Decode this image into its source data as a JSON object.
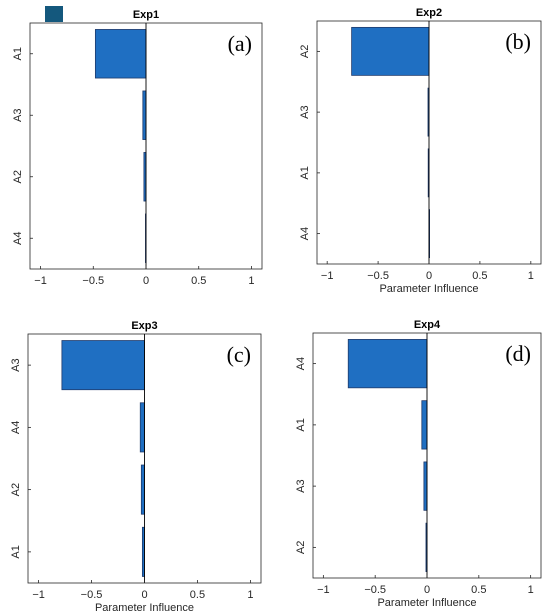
{
  "colors": {
    "bar": "#1f6fc2",
    "bar_edge": "#1f3a6b",
    "legend_patch": "#14587d"
  },
  "legend_patch_icon": "legend-color-patch",
  "chart_data": [
    {
      "type": "bar",
      "orientation": "horizontal",
      "panel_label": "(a)",
      "title": "Exp1",
      "xlabel": "",
      "ylabel": "",
      "categories": [
        "A1",
        "A3",
        "A2",
        "A4"
      ],
      "values": [
        -0.48,
        -0.03,
        -0.02,
        -0.005
      ],
      "xlim": [
        -1.1,
        1.1
      ],
      "xticks": [
        -1,
        -0.5,
        0,
        0.5,
        1
      ],
      "xtick_labels": [
        "−1",
        "−0.5",
        "0",
        "0.5",
        "1"
      ],
      "grid": false
    },
    {
      "type": "bar",
      "orientation": "horizontal",
      "panel_label": "(b)",
      "title": "Exp2",
      "xlabel": "Parameter Influence",
      "ylabel": "",
      "categories": [
        "A2",
        "A3",
        "A1",
        "A4"
      ],
      "values": [
        -0.76,
        -0.01,
        -0.008,
        0
      ],
      "xlim": [
        -1.1,
        1.1
      ],
      "xticks": [
        -1,
        -0.5,
        0,
        0.5,
        1
      ],
      "xtick_labels": [
        "−1",
        "−0.5",
        "0",
        "0.5",
        "1"
      ],
      "grid": false
    },
    {
      "type": "bar",
      "orientation": "horizontal",
      "panel_label": "(c)",
      "title": "Exp3",
      "xlabel": "Parameter Influence",
      "ylabel": "",
      "categories": [
        "A3",
        "A4",
        "A2",
        "A1"
      ],
      "values": [
        -0.78,
        -0.04,
        -0.03,
        -0.02
      ],
      "xlim": [
        -1.1,
        1.1
      ],
      "xticks": [
        -1,
        -0.5,
        0,
        0.5,
        1
      ],
      "xtick_labels": [
        "−1",
        "−0.5",
        "0",
        "0.5",
        "1"
      ],
      "grid": false
    },
    {
      "type": "bar",
      "orientation": "horizontal",
      "panel_label": "(d)",
      "title": "Exp4",
      "xlabel": "Parameter Influence",
      "ylabel": "",
      "categories": [
        "A4",
        "A1",
        "A3",
        "A2"
      ],
      "values": [
        -0.76,
        -0.05,
        -0.03,
        -0.01
      ],
      "xlim": [
        -1.1,
        1.1
      ],
      "xticks": [
        -1,
        -0.5,
        0,
        0.5,
        1
      ],
      "xtick_labels": [
        "−1",
        "−0.5",
        "0",
        "0.5",
        "1"
      ],
      "grid": false
    }
  ]
}
